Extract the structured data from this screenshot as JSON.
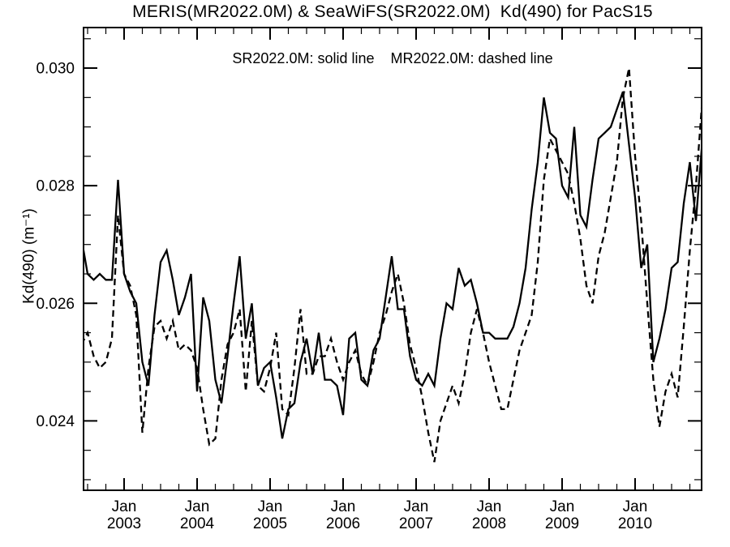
{
  "chart": {
    "title": "MERIS(MR2022.0M) & SeaWiFS(SR2022.0M)  Kd(490) for PacS15",
    "legend": "SR2022.0M: solid line    MR2022.0M: dashed line",
    "y_axis_label": "Kd(490) (m⁻¹)",
    "line_color": "#000000",
    "background_color": "#ffffff"
  },
  "chart_data": {
    "type": "line",
    "title": "MERIS(MR2022.0M) & SeaWiFS(SR2022.0M)  Kd(490) for PacS15",
    "xlabel": "",
    "ylabel": "Kd(490) (m⁻¹)",
    "legend_note": "SR2022.0M: solid line    MR2022.0M: dashed line",
    "legend_position": "top-center-inside",
    "grid": false,
    "ylim": [
      0.02282,
      0.03069
    ],
    "y_major_ticks": [
      0.024,
      0.026,
      0.028,
      0.03
    ],
    "y_tick_labels": [
      "0.024",
      "0.026",
      "0.028",
      "0.030"
    ],
    "y_minor_tick_step": 0.0005,
    "x_major_tick_years": [
      "2003",
      "2004",
      "2005",
      "2006",
      "2007",
      "2008",
      "2009",
      "2010"
    ],
    "x_major_tick_month_label": "Jan",
    "x_minor_tick_step_months": 3,
    "months": [
      "2002-06",
      "2002-07",
      "2002-08",
      "2002-09",
      "2002-10",
      "2002-11",
      "2002-12",
      "2003-01",
      "2003-02",
      "2003-03",
      "2003-04",
      "2003-05",
      "2003-06",
      "2003-07",
      "2003-08",
      "2003-09",
      "2003-10",
      "2003-11",
      "2003-12",
      "2004-01",
      "2004-02",
      "2004-03",
      "2004-04",
      "2004-05",
      "2004-06",
      "2004-07",
      "2004-08",
      "2004-09",
      "2004-10",
      "2004-11",
      "2004-12",
      "2005-01",
      "2005-02",
      "2005-03",
      "2005-04",
      "2005-05",
      "2005-06",
      "2005-07",
      "2005-08",
      "2005-09",
      "2005-10",
      "2005-11",
      "2005-12",
      "2006-01",
      "2006-02",
      "2006-03",
      "2006-04",
      "2006-05",
      "2006-06",
      "2006-07",
      "2006-08",
      "2006-09",
      "2006-10",
      "2006-11",
      "2006-12",
      "2007-01",
      "2007-02",
      "2007-03",
      "2007-04",
      "2007-05",
      "2007-06",
      "2007-07",
      "2007-08",
      "2007-09",
      "2007-10",
      "2007-11",
      "2007-12",
      "2008-01",
      "2008-02",
      "2008-03",
      "2008-04",
      "2008-05",
      "2008-06",
      "2008-07",
      "2008-08",
      "2008-09",
      "2008-10",
      "2008-11",
      "2008-12",
      "2009-01",
      "2009-02",
      "2009-03",
      "2009-04",
      "2009-05",
      "2009-06",
      "2009-07",
      "2009-08",
      "2009-09",
      "2009-10",
      "2009-11",
      "2009-12",
      "2010-01",
      "2010-02",
      "2010-03",
      "2010-04",
      "2010-05",
      "2010-06",
      "2010-07",
      "2010-08",
      "2010-09",
      "2010-10",
      "2010-11",
      "2010-12"
    ],
    "series": [
      {
        "name": "SeaWiFS SR2022.0M",
        "style": "solid",
        "color": "#000000",
        "values": [
          0.0271,
          0.0265,
          0.0264,
          0.0265,
          0.0264,
          0.0264,
          0.0281,
          0.0265,
          0.0262,
          0.026,
          0.025,
          0.0246,
          0.0258,
          0.0267,
          0.0269,
          0.0264,
          0.0258,
          0.0261,
          0.0265,
          0.0245,
          0.0261,
          0.0257,
          0.0247,
          0.0243,
          0.0251,
          0.026,
          0.0268,
          0.0254,
          0.026,
          0.0246,
          0.0249,
          0.025,
          0.0244,
          0.0237,
          0.0242,
          0.0243,
          0.025,
          0.0254,
          0.0248,
          0.0255,
          0.0247,
          0.0247,
          0.0246,
          0.0241,
          0.0254,
          0.0255,
          0.0247,
          0.0246,
          0.0252,
          0.0254,
          0.0261,
          0.0268,
          0.0259,
          0.0259,
          0.0251,
          0.0247,
          0.0246,
          0.0248,
          0.0246,
          0.0254,
          0.026,
          0.0259,
          0.0266,
          0.0263,
          0.0264,
          0.026,
          0.0255,
          0.0255,
          0.0254,
          0.0254,
          0.0254,
          0.0256,
          0.026,
          0.0266,
          0.0276,
          0.0284,
          0.0295,
          0.0289,
          0.0288,
          0.028,
          0.0278,
          0.029,
          0.0275,
          0.0273,
          0.0281,
          0.0288,
          0.0289,
          0.029,
          0.0293,
          0.0296,
          0.0287,
          0.0278,
          0.0266,
          0.027,
          0.025,
          0.0254,
          0.0259,
          0.0266,
          0.0267,
          0.0277,
          0.0284,
          0.0274,
          0.0287
        ]
      },
      {
        "name": "MERIS MR2022.0M",
        "style": "dashed",
        "color": "#000000",
        "values": [
          0.0253,
          0.0255,
          0.0251,
          0.0249,
          0.025,
          0.0254,
          0.0275,
          0.0265,
          0.0263,
          0.0258,
          0.0238,
          0.0249,
          0.0256,
          0.0257,
          0.0254,
          0.0257,
          0.0252,
          0.0253,
          0.0252,
          0.0249,
          0.0242,
          0.0236,
          0.0237,
          0.0247,
          0.0253,
          0.0255,
          0.0259,
          0.0245,
          0.0257,
          0.0246,
          0.0245,
          0.0249,
          0.0255,
          0.0242,
          0.0241,
          0.0249,
          0.0259,
          0.0248,
          0.0248,
          0.0251,
          0.0251,
          0.0254,
          0.025,
          0.0247,
          0.025,
          0.0252,
          0.0248,
          0.0246,
          0.025,
          0.0255,
          0.0258,
          0.0262,
          0.0265,
          0.026,
          0.0253,
          0.0249,
          0.0244,
          0.0238,
          0.0233,
          0.024,
          0.0243,
          0.0246,
          0.0243,
          0.0248,
          0.0255,
          0.0259,
          0.0255,
          0.025,
          0.0246,
          0.0242,
          0.0242,
          0.0247,
          0.0252,
          0.0255,
          0.0258,
          0.0267,
          0.0281,
          0.0288,
          0.0286,
          0.0284,
          0.0282,
          0.0277,
          0.0271,
          0.0263,
          0.026,
          0.0268,
          0.0272,
          0.0278,
          0.0284,
          0.0295,
          0.03,
          0.0285,
          0.0274,
          0.026,
          0.0247,
          0.0239,
          0.0245,
          0.0248,
          0.0244,
          0.0256,
          0.0269,
          0.028,
          0.0294
        ]
      }
    ]
  }
}
